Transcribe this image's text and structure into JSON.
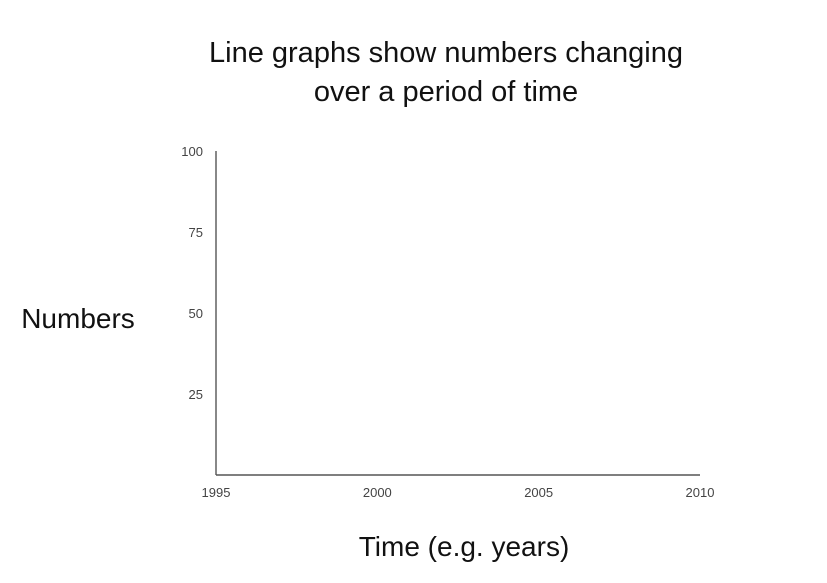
{
  "chart_data": {
    "type": "line",
    "title": "Line graphs show numbers changing over a period of time",
    "title_lines": [
      "Line graphs show numbers changing",
      "over a period of time"
    ],
    "xlabel": "Time (e.g. years)",
    "ylabel": "Numbers",
    "x_ticks": [
      "1995",
      "2000",
      "2005",
      "2010"
    ],
    "y_ticks": [
      "100",
      "75",
      "50",
      "25"
    ],
    "xlim": [
      1995,
      2010
    ],
    "ylim": [
      0,
      100
    ],
    "grid": false,
    "series": []
  },
  "colors": {
    "axis": "#555555",
    "text": "#111111",
    "tick_text": "#444444",
    "background": "#ffffff"
  }
}
